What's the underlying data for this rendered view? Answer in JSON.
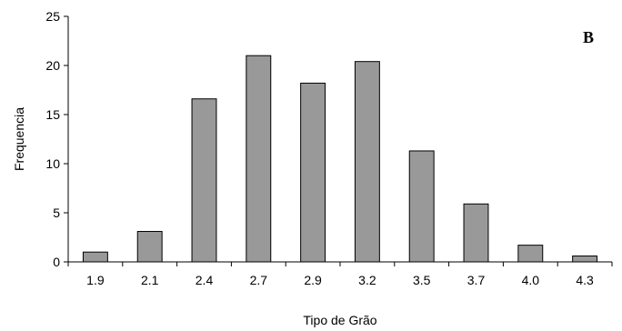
{
  "chart_data": {
    "type": "bar",
    "categories": [
      "1.9",
      "2.1",
      "2.4",
      "2.7",
      "2.9",
      "3.2",
      "3.5",
      "3.7",
      "4.0",
      "4.3"
    ],
    "values": [
      1.0,
      3.1,
      16.6,
      21.0,
      18.2,
      20.4,
      11.3,
      5.9,
      1.7,
      0.6
    ],
    "title": "",
    "panel_label": "B",
    "xlabel": "Tipo de Grão",
    "ylabel": "Frequencia",
    "ylim": [
      0,
      25
    ],
    "yticks": [
      0,
      5,
      10,
      15,
      20,
      25
    ],
    "grid": false,
    "legend": "none",
    "bar_color": "#999999",
    "bar_edge_color": "#000000"
  }
}
